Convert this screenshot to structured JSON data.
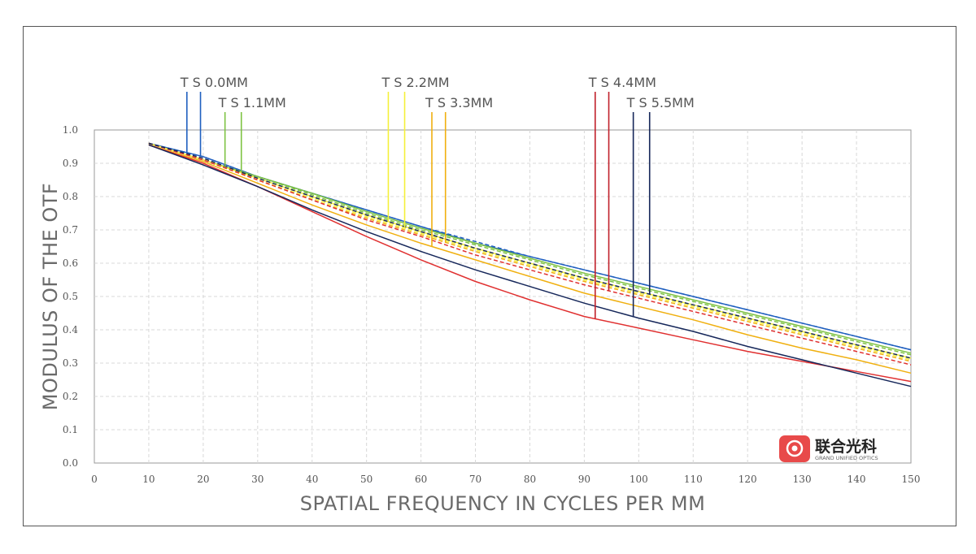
{
  "chart_data": {
    "type": "line",
    "xlabel": "SPATIAL FREQUENCY IN CYCLES PER MM",
    "ylabel": "MODULUS OF THE OTF",
    "xlim": [
      0,
      150
    ],
    "ylim": [
      0,
      1.0
    ],
    "x_ticks": [
      "0",
      "10",
      "20",
      "30",
      "40",
      "50",
      "60",
      "70",
      "80",
      "90",
      "100",
      "110",
      "120",
      "130",
      "140",
      "150"
    ],
    "y_ticks": [
      "0.0",
      "0.1",
      "0.2",
      "0.3",
      "0.4",
      "0.5",
      "0.6",
      "0.7",
      "0.8",
      "0.9",
      "1.0"
    ],
    "grid": true,
    "x": [
      10,
      20,
      30,
      40,
      50,
      60,
      70,
      80,
      90,
      100,
      110,
      120,
      130,
      140,
      150
    ],
    "series": [
      {
        "color": "#1f5fbf",
        "dash": "none",
        "values": [
          0.96,
          0.92,
          0.86,
          0.81,
          0.76,
          0.71,
          0.66,
          0.62,
          0.58,
          0.54,
          0.5,
          0.46,
          0.42,
          0.38,
          0.34
        ]
      },
      {
        "color": "#1f5fbf",
        "dash": "dash",
        "values": [
          0.96,
          0.92,
          0.86,
          0.81,
          0.76,
          0.71,
          0.665,
          0.62,
          0.58,
          0.54,
          0.5,
          0.46,
          0.42,
          0.38,
          0.34
        ]
      },
      {
        "color": "#7dc242",
        "dash": "none",
        "values": [
          0.96,
          0.91,
          0.86,
          0.81,
          0.755,
          0.705,
          0.66,
          0.615,
          0.57,
          0.53,
          0.49,
          0.45,
          0.41,
          0.37,
          0.33
        ]
      },
      {
        "color": "#7dc242",
        "dash": "dash",
        "values": [
          0.96,
          0.91,
          0.86,
          0.805,
          0.75,
          0.7,
          0.655,
          0.61,
          0.565,
          0.525,
          0.485,
          0.445,
          0.405,
          0.365,
          0.325
        ]
      },
      {
        "color": "#f5f03a",
        "dash": "none",
        "values": [
          0.96,
          0.91,
          0.855,
          0.8,
          0.745,
          0.695,
          0.645,
          0.6,
          0.555,
          0.515,
          0.475,
          0.435,
          0.395,
          0.355,
          0.315
        ]
      },
      {
        "color": "#f5f03a",
        "dash": "dash",
        "values": [
          0.96,
          0.91,
          0.85,
          0.795,
          0.74,
          0.69,
          0.64,
          0.595,
          0.55,
          0.51,
          0.47,
          0.43,
          0.39,
          0.35,
          0.31
        ]
      },
      {
        "color": "#f0b010",
        "dash": "none",
        "values": [
          0.955,
          0.905,
          0.84,
          0.775,
          0.715,
          0.66,
          0.61,
          0.56,
          0.51,
          0.47,
          0.43,
          0.385,
          0.345,
          0.31,
          0.27
        ]
      },
      {
        "color": "#f0b010",
        "dash": "dash",
        "values": [
          0.96,
          0.91,
          0.85,
          0.79,
          0.735,
          0.685,
          0.635,
          0.59,
          0.545,
          0.505,
          0.465,
          0.425,
          0.385,
          0.345,
          0.305
        ]
      },
      {
        "color": "#e03030",
        "dash": "none",
        "values": [
          0.955,
          0.9,
          0.83,
          0.755,
          0.68,
          0.61,
          0.545,
          0.49,
          0.44,
          0.405,
          0.37,
          0.335,
          0.305,
          0.275,
          0.245
        ]
      },
      {
        "color": "#e03030",
        "dash": "dash",
        "values": [
          0.96,
          0.91,
          0.85,
          0.79,
          0.73,
          0.68,
          0.625,
          0.58,
          0.535,
          0.495,
          0.455,
          0.415,
          0.375,
          0.335,
          0.295
        ]
      },
      {
        "color": "#16275a",
        "dash": "none",
        "values": [
          0.955,
          0.895,
          0.83,
          0.76,
          0.695,
          0.635,
          0.58,
          0.53,
          0.48,
          0.435,
          0.395,
          0.35,
          0.31,
          0.27,
          0.23
        ]
      },
      {
        "color": "#16275a",
        "dash": "dash",
        "values": [
          0.96,
          0.915,
          0.855,
          0.8,
          0.745,
          0.695,
          0.645,
          0.6,
          0.555,
          0.515,
          0.475,
          0.435,
          0.395,
          0.355,
          0.315
        ]
      }
    ],
    "field_labels": [
      {
        "text": "T S 0.0MM",
        "color": "#1f5fbf",
        "ts_x": [
          17,
          19.5
        ]
      },
      {
        "text": "T S 1.1MM",
        "color": "#7dc242",
        "ts_x": [
          24,
          27
        ]
      },
      {
        "text": "T S 2.2MM",
        "color": "#f5f03a",
        "ts_x": [
          54,
          57
        ]
      },
      {
        "text": "T S 3.3MM",
        "color": "#f0b010",
        "ts_x": [
          62,
          64.5
        ]
      },
      {
        "text": "T S 4.4MM",
        "color": "#c0202a",
        "ts_x": [
          92,
          94.5
        ]
      },
      {
        "text": "T S 5.5MM",
        "color": "#16275a",
        "ts_x": [
          99,
          102
        ]
      }
    ]
  },
  "logo": {
    "name": "联合光科",
    "sub": "GRAND UNIFIED OPTICS",
    "color": "#e84a4a"
  }
}
